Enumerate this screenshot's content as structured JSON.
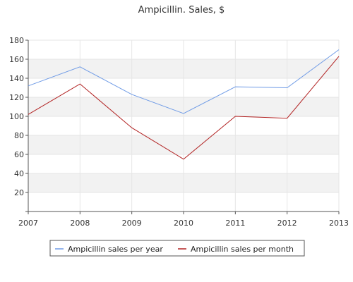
{
  "chart_data": {
    "type": "line",
    "title": "Ampicillin. Sales, $",
    "xlabel": "",
    "ylabel": "",
    "categories": [
      "2007",
      "2008",
      "2009",
      "2010",
      "2011",
      "2012",
      "2013"
    ],
    "ylim": [
      0,
      180
    ],
    "yticks": [
      "20",
      "40",
      "60",
      "80",
      "100",
      "120",
      "140",
      "160",
      "180"
    ],
    "grid": "horizontal alternating bands",
    "legend_position": "bottom",
    "series": [
      {
        "name": "Ampicillin sales per year",
        "color": "#6f9be6",
        "values": [
          132,
          152,
          123,
          103,
          131,
          130,
          170
        ]
      },
      {
        "name": "Ampicillin sales per month",
        "color": "#b22222",
        "values": [
          102,
          134,
          88,
          55,
          100,
          98,
          163
        ]
      }
    ]
  }
}
